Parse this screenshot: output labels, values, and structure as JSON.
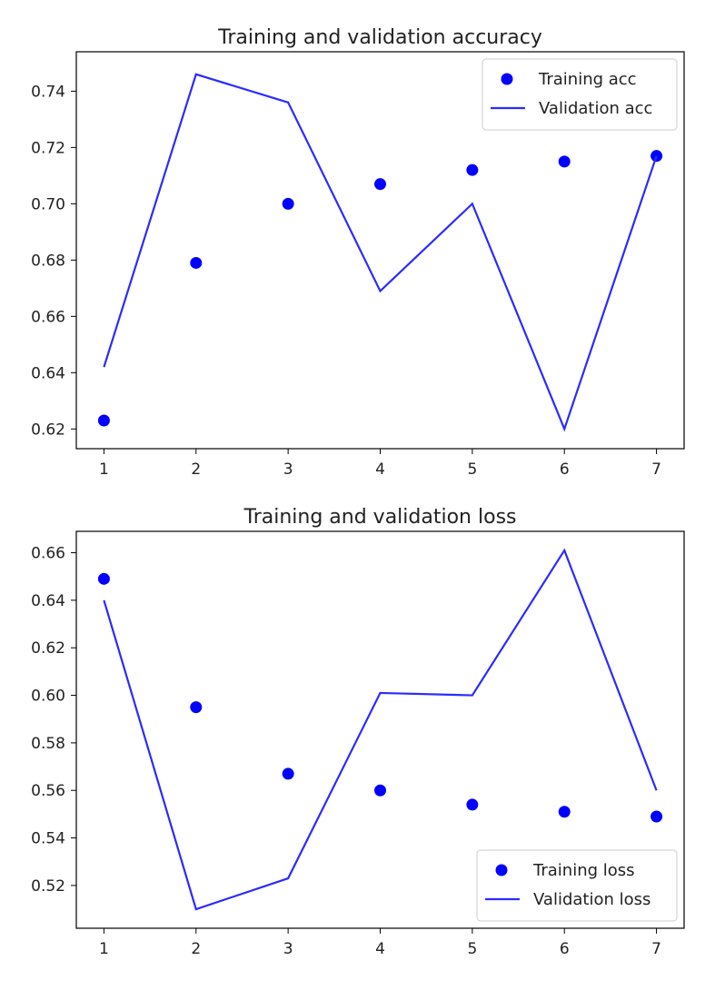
{
  "chart_data": [
    {
      "type": "line",
      "title": "Training and validation accuracy",
      "xlabel": "",
      "ylabel": "",
      "x": [
        1,
        2,
        3,
        4,
        5,
        6,
        7
      ],
      "xticks": [
        "1",
        "2",
        "3",
        "4",
        "5",
        "6",
        "7"
      ],
      "yticks": [
        "0.62",
        "0.64",
        "0.66",
        "0.68",
        "0.70",
        "0.72",
        "0.74"
      ],
      "ylim": [
        0.613,
        0.754
      ],
      "xlim": [
        0.7,
        7.3
      ],
      "legend_position": "top-right",
      "series": [
        {
          "name": "Training acc",
          "style": "points",
          "color": "#0000ff",
          "values": [
            0.623,
            0.679,
            0.7,
            0.707,
            0.712,
            0.715,
            0.717
          ]
        },
        {
          "name": "Validation acc",
          "style": "line",
          "color": "#2b2bff",
          "values": [
            0.642,
            0.746,
            0.736,
            0.669,
            0.7,
            0.62,
            0.717
          ]
        }
      ]
    },
    {
      "type": "line",
      "title": "Training and validation loss",
      "xlabel": "",
      "ylabel": "",
      "x": [
        1,
        2,
        3,
        4,
        5,
        6,
        7
      ],
      "xticks": [
        "1",
        "2",
        "3",
        "4",
        "5",
        "6",
        "7"
      ],
      "yticks": [
        "0.52",
        "0.54",
        "0.56",
        "0.58",
        "0.60",
        "0.62",
        "0.64",
        "0.66"
      ],
      "ylim": [
        0.502,
        0.669
      ],
      "xlim": [
        0.7,
        7.3
      ],
      "legend_position": "bottom-right",
      "series": [
        {
          "name": "Training loss",
          "style": "points",
          "color": "#0000ff",
          "values": [
            0.649,
            0.595,
            0.567,
            0.56,
            0.554,
            0.551,
            0.549
          ]
        },
        {
          "name": "Validation loss",
          "style": "line",
          "color": "#2b2bff",
          "values": [
            0.64,
            0.51,
            0.523,
            0.601,
            0.6,
            0.661,
            0.56
          ]
        }
      ]
    }
  ]
}
